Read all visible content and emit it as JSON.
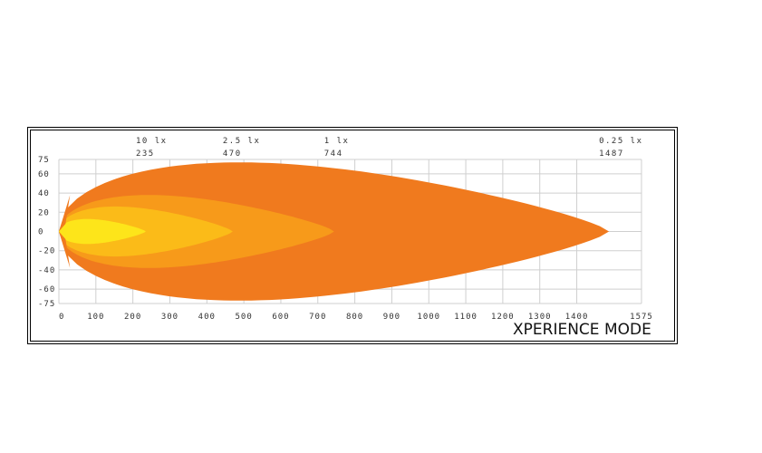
{
  "chart_data": {
    "type": "heatmap",
    "title": "",
    "xlabel": "",
    "ylabel": "",
    "xlim": [
      0,
      1575
    ],
    "ylim": [
      -75,
      75
    ],
    "x_ticks": [
      "0",
      "100",
      "200",
      "300",
      "400",
      "500",
      "600",
      "700",
      "800",
      "900",
      "1000",
      "1100",
      "1200",
      "1300",
      "1400",
      "1575"
    ],
    "y_ticks": [
      "75",
      "60",
      "40",
      "20",
      "0",
      "-20",
      "-40",
      "-60",
      "-75"
    ],
    "grid": true,
    "isolux_labels": [
      {
        "lux": "10 lx",
        "distance": "235"
      },
      {
        "lux": "2.5 lx",
        "distance": "470"
      },
      {
        "lux": "1 lx",
        "distance": "744"
      },
      {
        "lux": "0.25 lx",
        "distance": "1487"
      }
    ],
    "contours": [
      {
        "level": "0.25 lx",
        "reach": 1487,
        "max_width": 72,
        "color": "#f07a1e"
      },
      {
        "level": "1 lx",
        "reach": 744,
        "max_width": 38,
        "color": "#f79a1a"
      },
      {
        "level": "2.5 lx",
        "reach": 470,
        "max_width": 26,
        "color": "#fbbb18"
      },
      {
        "level": "10 lx",
        "reach": 235,
        "max_width": 13,
        "color": "#fde51a"
      }
    ]
  },
  "caption": "XPERIENCE MODE"
}
